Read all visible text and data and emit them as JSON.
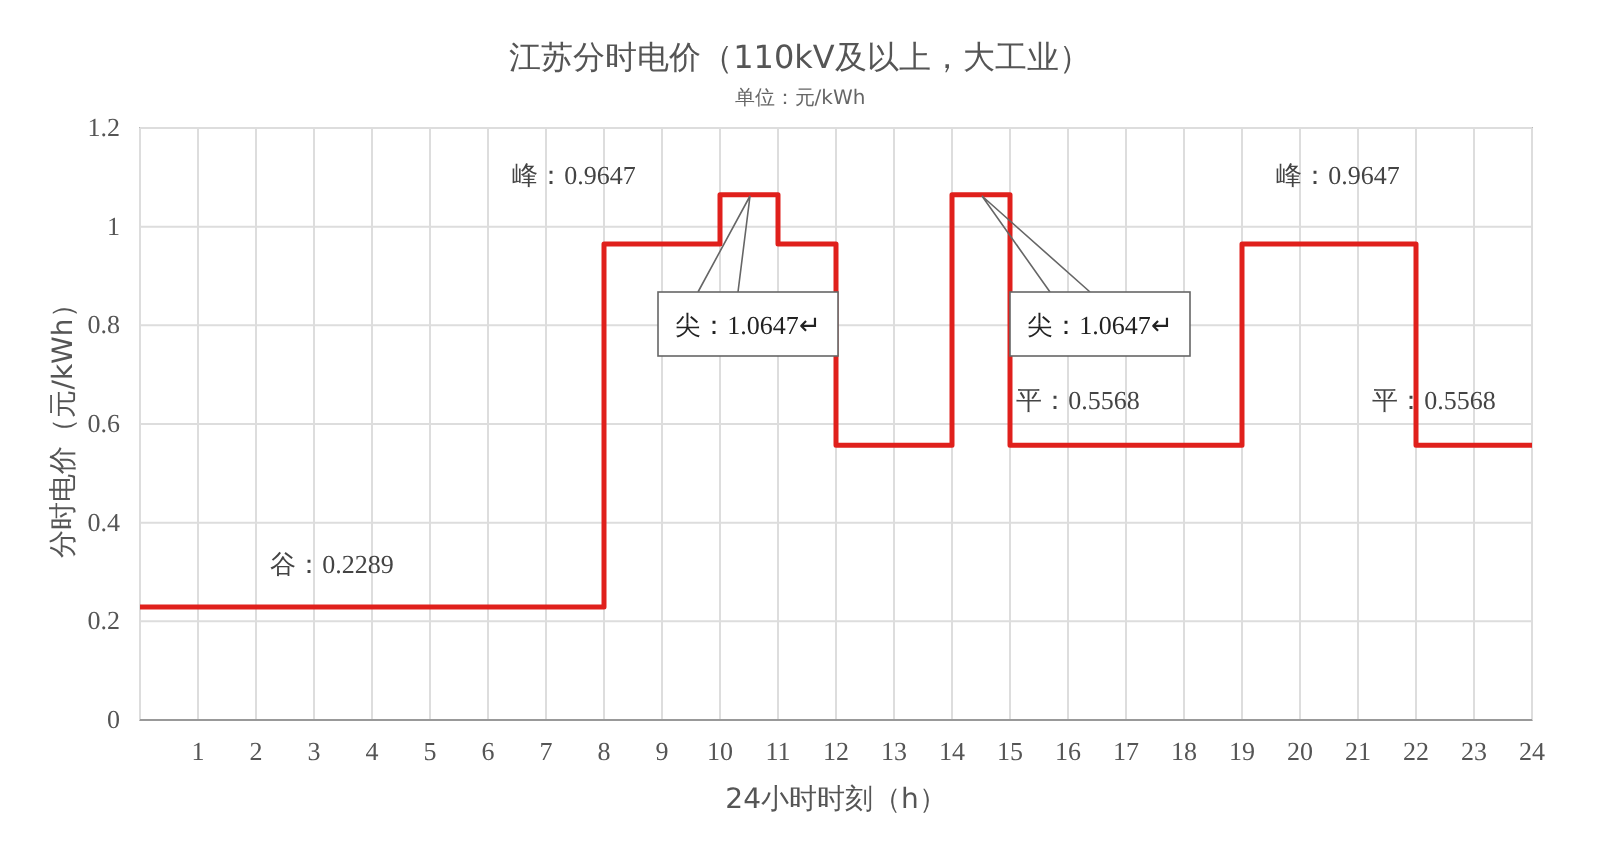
{
  "chart_data": {
    "type": "step",
    "title": "江苏分时电价（110kV及以上，大工业）",
    "subtitle": "单位：元/kWh",
    "xlabel": "24小时时刻（h）",
    "ylabel": "分时电价（元/kWh）",
    "x": [
      0,
      8,
      10,
      11,
      12,
      14,
      15,
      19,
      22,
      24
    ],
    "series": [
      {
        "color": "#e0201c",
        "values": [
          0.2289,
          0.9647,
          1.0647,
          0.9647,
          0.5568,
          1.0647,
          0.5568,
          0.9647,
          0.5568,
          0.5568
        ]
      }
    ],
    "xlim": [
      0,
      24
    ],
    "xticks": [
      {
        "value": 0,
        "label": null
      },
      1,
      2,
      3,
      4,
      5,
      6,
      7,
      8,
      9,
      10,
      11,
      12,
      13,
      14,
      15,
      16,
      17,
      18,
      19,
      20,
      21,
      22,
      23,
      24
    ],
    "ylim": [
      0,
      1.2
    ],
    "yticks": [
      0,
      0.2,
      0.4,
      0.6,
      0.8,
      1,
      1.2
    ],
    "grid": true,
    "marker": "none",
    "line_style": "solid",
    "annotations": [
      {
        "text": "谷：0.2289",
        "x": 4,
        "y": 0.2289
      },
      {
        "text": "峰：0.9647",
        "x": 9,
        "y": 0.9647
      },
      "尖：1.0647↵",
      "尖：1.0647↵",
      {
        "text": "平：0.5568",
        "x": 17,
        "y": 0.5568
      },
      {
        "text": "峰：0.9647",
        "x": 21,
        "y": 0.9647
      },
      {
        "text": "平：0.5568",
        "x": 23,
        "y": 0.5568
      }
    ]
  }
}
